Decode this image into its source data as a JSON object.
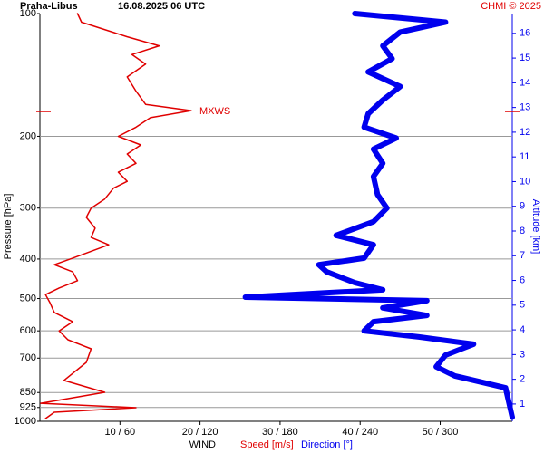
{
  "chart_data": {
    "type": "line",
    "title": "Praha-Libus",
    "subtitle": "16.08.2025 06 UTC",
    "credit": "CHMI © 2025",
    "ylabel": "Pressure [hPa]",
    "y2label": "Altitude [km]",
    "xlabel": "WIND",
    "ylog": true,
    "ylim": [
      100,
      1000
    ],
    "yticks": [
      100,
      200,
      300,
      400,
      500,
      600,
      700,
      850,
      925,
      1000
    ],
    "xlim": [
      0,
      59
    ],
    "x2lim": [
      0,
      354
    ],
    "xticks": [
      {
        "value": 10,
        "label": "10 / 60"
      },
      {
        "value": 20,
        "label": "20 / 120"
      },
      {
        "value": 30,
        "label": "30 / 180"
      },
      {
        "value": 40,
        "label": "40 / 240"
      },
      {
        "value": 50,
        "label": "50 / 300"
      }
    ],
    "y2lim": [
      0.3,
      16.8
    ],
    "y2ticks": [
      1,
      2,
      3,
      4,
      5,
      6,
      7,
      8,
      9,
      10,
      11,
      12,
      13,
      14,
      15,
      16
    ],
    "grid": true,
    "annotations": [
      {
        "text": "MXWS",
        "pressure": 174,
        "color": "#e00000"
      }
    ],
    "series": [
      {
        "name": "Speed [m/s]",
        "color": "#e00000",
        "axis": "x",
        "pressure": [
          985,
          950,
          926,
          903,
          880,
          849,
          794,
          717,
          664,
          631,
          600,
          570,
          541,
          514,
          489,
          471,
          452,
          430,
          413,
          398,
          369,
          354,
          336,
          316,
          300,
          285,
          268,
          258,
          245,
          233,
          221,
          210,
          200,
          190,
          180,
          173,
          167,
          155,
          143,
          133,
          126,
          120,
          114,
          105,
          100
        ],
        "values": [
          0.7,
          1.8,
          12,
          0.1,
          3.5,
          8.1,
          3.0,
          5.8,
          6.4,
          3.5,
          2.4,
          4.1,
          1.8,
          1.3,
          0.7,
          2.4,
          4.7,
          4.1,
          1.8,
          4.1,
          8.6,
          6.4,
          6.9,
          5.8,
          6.4,
          8.1,
          9.2,
          10.9,
          9.8,
          12.0,
          10.9,
          12.6,
          9.8,
          12.0,
          13.8,
          18.9,
          13.2,
          12.0,
          10.9,
          13.2,
          11.5,
          14.9,
          10.9,
          5.2,
          4.7
        ]
      },
      {
        "name": "Direction [°]",
        "color": "#0000ee",
        "axis": "x2",
        "pressure": [
          977,
          828,
          774,
          735,
          688,
          647,
          621,
          600,
          570,
          550,
          527,
          506,
          496,
          476,
          457,
          430,
          413,
          398,
          369,
          350,
          324,
          300,
          278,
          251,
          233,
          215,
          202,
          190,
          176,
          163,
          151,
          139,
          129,
          120,
          111,
          105,
          100
        ],
        "values": [
          354,
          349,
          311,
          297,
          304,
          325,
          284,
          243,
          250,
          290,
          257,
          290,
          154,
          257,
          236,
          215,
          209,
          243,
          250,
          222,
          250,
          260,
          253,
          250,
          257,
          250,
          267,
          243,
          246,
          257,
          270,
          246,
          264,
          257,
          270,
          304,
          236
        ]
      }
    ]
  }
}
